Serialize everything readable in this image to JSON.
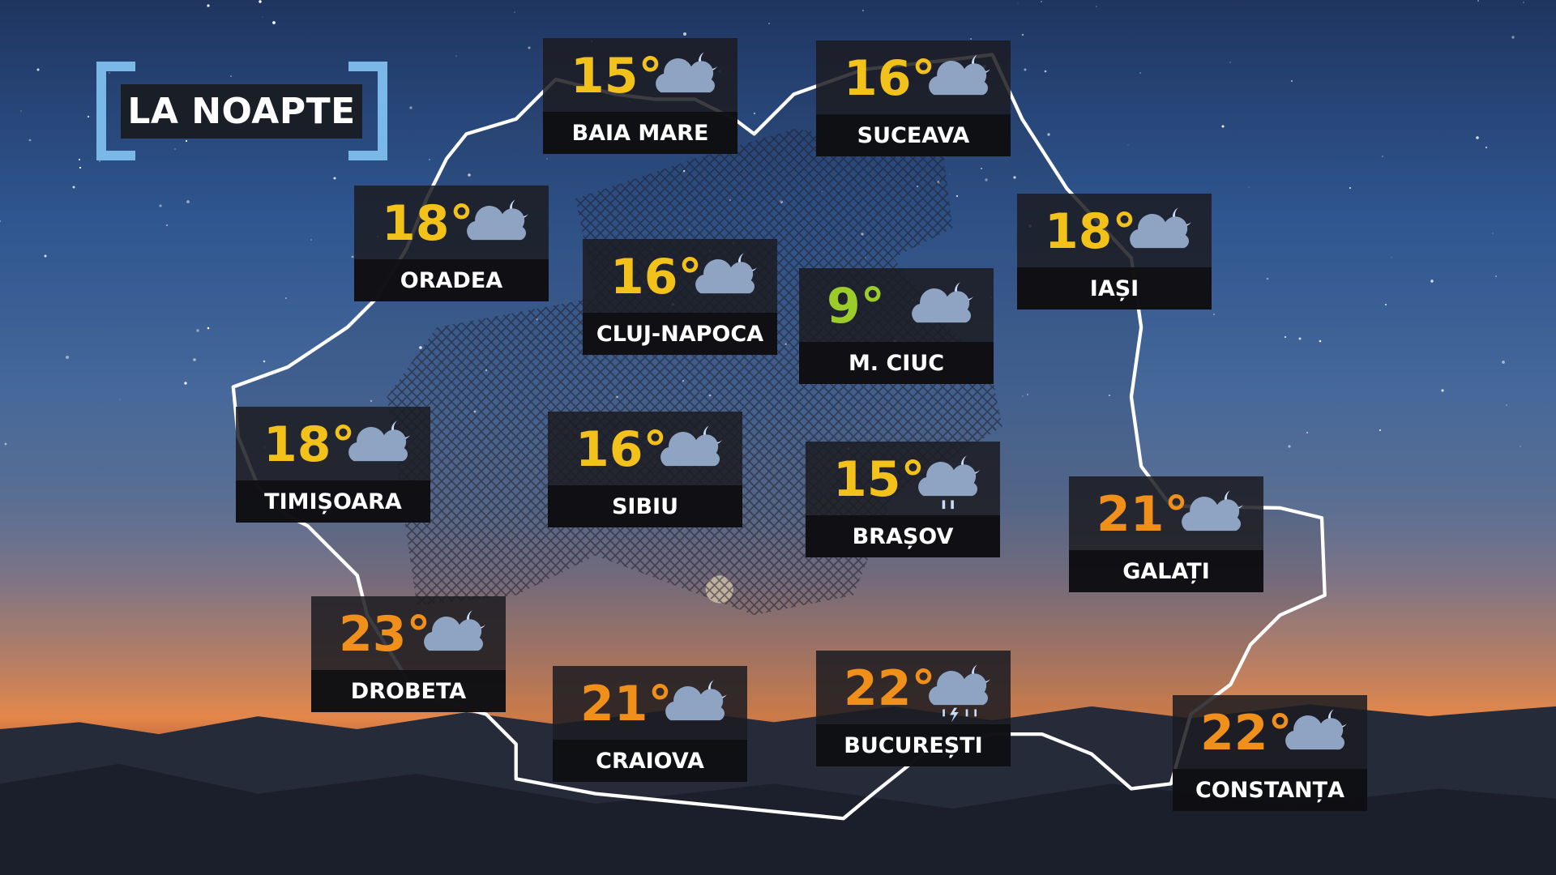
{
  "title": "LA NOAPTE",
  "colors": {
    "cool": "#f2c21a",
    "cold": "#9ccc2a",
    "warm": "#f0901a",
    "bracket": "#7ab8e8",
    "cloud": "#8ea4c2",
    "moon": "#c8dcf8"
  },
  "cities": [
    {
      "name": "BAIA MARE",
      "temp": "15°",
      "color": "#f2c21a",
      "icon": "cloud-moon-icon"
    },
    {
      "name": "SUCEAVA",
      "temp": "16°",
      "color": "#f2c21a",
      "icon": "cloud-moon-icon"
    },
    {
      "name": "ORADEA",
      "temp": "18°",
      "color": "#f2c21a",
      "icon": "cloud-moon-icon"
    },
    {
      "name": "CLUJ-NAPOCA",
      "temp": "16°",
      "color": "#f2c21a",
      "icon": "cloud-moon-icon"
    },
    {
      "name": "M. CIUC",
      "temp": "9°",
      "color": "#9ccc2a",
      "icon": "cloud-moon-icon"
    },
    {
      "name": "IAȘI",
      "temp": "18°",
      "color": "#f2c21a",
      "icon": "cloud-moon-icon"
    },
    {
      "name": "TIMIȘOARA",
      "temp": "18°",
      "color": "#f2c21a",
      "icon": "cloud-moon-icon"
    },
    {
      "name": "SIBIU",
      "temp": "16°",
      "color": "#f2c21a",
      "icon": "cloud-moon-icon"
    },
    {
      "name": "BRAȘOV",
      "temp": "15°",
      "color": "#f2c21a",
      "icon": "rain-moon-icon"
    },
    {
      "name": "GALAȚI",
      "temp": "21°",
      "color": "#f0901a",
      "icon": "cloud-moon-icon"
    },
    {
      "name": "DROBETA",
      "temp": "23°",
      "color": "#f0901a",
      "icon": "cloud-moon-icon"
    },
    {
      "name": "CRAIOVA",
      "temp": "21°",
      "color": "#f0901a",
      "icon": "cloud-moon-icon"
    },
    {
      "name": "BUCUREȘTI",
      "temp": "22°",
      "color": "#f0901a",
      "icon": "thunderstorm-moon-icon"
    },
    {
      "name": "CONSTANȚA",
      "temp": "22°",
      "color": "#f0901a",
      "icon": "cloud-moon-icon"
    }
  ]
}
